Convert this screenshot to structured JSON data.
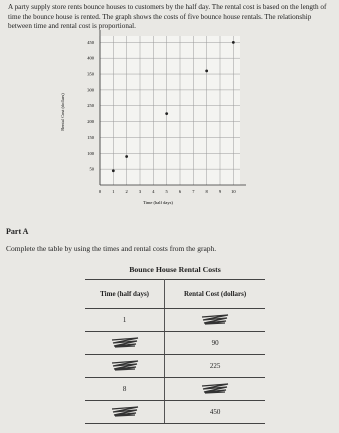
{
  "intro": "A party supply store rents bounce houses to customers by the half day. The rental cost is based on the length of time the bounce house is rented. The graph shows the costs of five bounce house rentals. The relationship between time and rental cost is proportional.",
  "chart_data": {
    "type": "scatter",
    "xlabel": "Time (half days)",
    "ylabel": "Rental Cost (dollars)",
    "x": [
      1,
      2,
      5,
      8,
      10
    ],
    "values": [
      45,
      90,
      225,
      360,
      450
    ],
    "color": "#222222",
    "xlim": [
      0,
      10.5
    ],
    "xticks": [
      0,
      1,
      2,
      3,
      4,
      5,
      6,
      7,
      8,
      9,
      10
    ],
    "ylim": [
      0,
      470
    ],
    "yticks": [
      50,
      100,
      150,
      200,
      250,
      300,
      350,
      400,
      450
    ],
    "grid": true
  },
  "part_a": {
    "heading": "Part A",
    "instruction": "Complete the table by using the times and rental costs from the graph."
  },
  "table": {
    "title": "Bounce House Rental Costs",
    "headers": [
      "Time (half days)",
      "Rental Cost (dollars)"
    ],
    "rows": [
      [
        "1",
        null
      ],
      [
        null,
        "90"
      ],
      [
        null,
        "225"
      ],
      [
        "8",
        null
      ],
      [
        null,
        "450"
      ]
    ]
  }
}
